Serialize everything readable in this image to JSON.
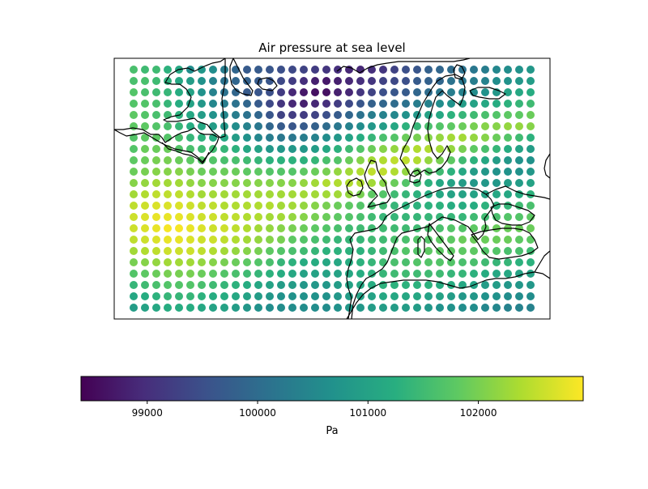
{
  "chart_data": {
    "type": "scatter",
    "title": "Air pressure at sea level",
    "colorbar": {
      "label": "Pa",
      "colormap": "viridis",
      "range": [
        98400,
        102950
      ],
      "ticks": [
        "99000",
        "100000",
        "101000",
        "102000"
      ]
    },
    "grid_rows": 22,
    "grid_cols": 36,
    "values": [
      [
        101600,
        101500,
        101500,
        101300,
        101100,
        100600,
        100800,
        100600,
        100300,
        99900,
        99700,
        99700,
        99600,
        99500,
        99400,
        99300,
        99200,
        99100,
        99000,
        98900,
        98900,
        99000,
        99100,
        99300,
        99500,
        99600,
        99800,
        99900,
        100000,
        100100,
        100200,
        100300,
        100500,
        100600,
        100700,
        100800
      ],
      [
        101600,
        101600,
        101500,
        101300,
        101100,
        100900,
        100700,
        100400,
        100100,
        99900,
        99800,
        99700,
        99600,
        99400,
        99200,
        99000,
        98800,
        98700,
        98800,
        98900,
        99000,
        99100,
        99300,
        99400,
        99500,
        99700,
        99800,
        99900,
        100100,
        100200,
        100300,
        100400,
        100600,
        100700,
        100800,
        100900
      ],
      [
        101700,
        101600,
        101500,
        101400,
        101200,
        101000,
        100700,
        100400,
        100100,
        99900,
        99700,
        99600,
        99500,
        99200,
        98900,
        98700,
        98600,
        98600,
        98800,
        98900,
        99100,
        99300,
        99500,
        99600,
        99700,
        99900,
        100000,
        100200,
        100300,
        100400,
        100600,
        100700,
        100800,
        101000,
        101100,
        101200
      ],
      [
        101700,
        101700,
        101600,
        101400,
        101200,
        101000,
        100800,
        100500,
        100300,
        100100,
        99900,
        99700,
        99400,
        99100,
        98900,
        98800,
        98900,
        99000,
        99200,
        99400,
        99600,
        99800,
        99900,
        100000,
        100100,
        100300,
        100400,
        100600,
        100700,
        100900,
        101000,
        101100,
        101200,
        101300,
        101400,
        101500
      ],
      [
        101800,
        101700,
        101600,
        101500,
        101300,
        101100,
        100900,
        100700,
        100500,
        100300,
        100100,
        99900,
        99600,
        99300,
        99200,
        99200,
        99300,
        99500,
        99700,
        99900,
        100100,
        100300,
        100400,
        100500,
        100700,
        100800,
        101000,
        101100,
        101300,
        101400,
        101500,
        101600,
        101700,
        101800,
        101800,
        101900
      ],
      [
        101800,
        101800,
        101700,
        101600,
        101400,
        101200,
        101100,
        100900,
        100800,
        100600,
        100400,
        100200,
        99900,
        99700,
        99600,
        99700,
        99800,
        100000,
        100200,
        100400,
        100600,
        100800,
        100900,
        101100,
        101300,
        101400,
        101600,
        101700,
        101800,
        101900,
        102000,
        102100,
        102100,
        102200,
        102200,
        102100
      ],
      [
        101700,
        101800,
        101800,
        101700,
        101600,
        101400,
        101300,
        101200,
        101100,
        100900,
        100700,
        100500,
        100300,
        100200,
        100200,
        100300,
        100400,
        100600,
        100800,
        101000,
        101200,
        101400,
        101600,
        101700,
        101900,
        102000,
        102100,
        102200,
        102300,
        102300,
        102200,
        102100,
        101900,
        101700,
        101500,
        101300
      ],
      [
        101700,
        101900,
        101900,
        101900,
        101700,
        101600,
        101500,
        101500,
        101400,
        101300,
        101100,
        101000,
        100800,
        100800,
        100800,
        100800,
        100900,
        101100,
        101300,
        101500,
        101700,
        101900,
        102100,
        102200,
        102300,
        102400,
        102400,
        102300,
        102200,
        102000,
        101800,
        101600,
        101400,
        101200,
        101000,
        100900
      ],
      [
        101800,
        101900,
        102000,
        102000,
        101900,
        101800,
        101700,
        101700,
        101600,
        101600,
        101500,
        101400,
        101300,
        101300,
        101300,
        101300,
        101400,
        101600,
        101700,
        101900,
        102100,
        102300,
        102400,
        102500,
        102500,
        102400,
        102200,
        102000,
        101800,
        101500,
        101300,
        101100,
        100900,
        100800,
        100700,
        100700
      ],
      [
        101900,
        102000,
        102100,
        102100,
        102100,
        102000,
        101900,
        101900,
        101900,
        101900,
        101800,
        101800,
        101700,
        101700,
        101700,
        101800,
        101900,
        102000,
        102200,
        102300,
        102400,
        102500,
        102500,
        102400,
        102200,
        101900,
        101700,
        101500,
        101300,
        101100,
        100900,
        100800,
        100700,
        100700,
        100700,
        100800
      ],
      [
        102100,
        102200,
        102300,
        102300,
        102300,
        102200,
        102100,
        102100,
        102100,
        102100,
        102100,
        102100,
        102100,
        102100,
        102100,
        102200,
        102300,
        102400,
        102400,
        102400,
        102400,
        102300,
        102100,
        101900,
        101700,
        101500,
        101300,
        101100,
        101000,
        100900,
        100800,
        100800,
        100800,
        100900,
        100900,
        101000
      ],
      [
        102300,
        102400,
        102500,
        102500,
        102500,
        102400,
        102300,
        102300,
        102300,
        102300,
        102300,
        102300,
        102300,
        102300,
        102300,
        102300,
        102300,
        102300,
        102300,
        102200,
        102000,
        101800,
        101700,
        101500,
        101400,
        101300,
        101200,
        101100,
        101000,
        101000,
        101000,
        101000,
        101100,
        101100,
        101200,
        101300
      ],
      [
        102500,
        102600,
        102700,
        102700,
        102700,
        102600,
        102500,
        102500,
        102400,
        102400,
        102400,
        102400,
        102400,
        102300,
        102300,
        102200,
        102100,
        102000,
        101900,
        101800,
        101700,
        101600,
        101500,
        101400,
        101300,
        101300,
        101300,
        101300,
        101200,
        101200,
        101200,
        101300,
        101300,
        101400,
        101500,
        101600
      ],
      [
        102600,
        102700,
        102800,
        102800,
        102800,
        102700,
        102600,
        102600,
        102500,
        102500,
        102400,
        102400,
        102300,
        102300,
        102200,
        102100,
        102000,
        101900,
        101800,
        101700,
        101600,
        101500,
        101400,
        101400,
        101400,
        101400,
        101400,
        101400,
        101400,
        101400,
        101500,
        101500,
        101600,
        101700,
        101700,
        101800
      ],
      [
        102600,
        102700,
        102800,
        102900,
        102900,
        102800,
        102700,
        102600,
        102600,
        102500,
        102400,
        102300,
        102200,
        102100,
        102000,
        101900,
        101800,
        101700,
        101600,
        101500,
        101500,
        101500,
        101500,
        101500,
        101500,
        101500,
        101600,
        101600,
        101700,
        101700,
        101800,
        101800,
        101900,
        101900,
        101900,
        101900
      ],
      [
        102500,
        102600,
        102700,
        102800,
        102800,
        102700,
        102600,
        102600,
        102500,
        102400,
        102300,
        102200,
        102100,
        102000,
        101800,
        101700,
        101600,
        101500,
        101400,
        101400,
        101400,
        101500,
        101500,
        101600,
        101600,
        101700,
        101700,
        101800,
        101800,
        101900,
        101900,
        101900,
        101900,
        101900,
        101800,
        101800
      ],
      [
        102300,
        102400,
        102500,
        102600,
        102600,
        102600,
        102500,
        102400,
        102300,
        102200,
        102100,
        102000,
        101800,
        101700,
        101600,
        101500,
        101400,
        101300,
        101300,
        101300,
        101300,
        101400,
        101500,
        101600,
        101700,
        101700,
        101800,
        101800,
        101800,
        101800,
        101800,
        101700,
        101700,
        101600,
        101600,
        101500
      ],
      [
        102000,
        102100,
        102200,
        102300,
        102300,
        102300,
        102200,
        102100,
        102000,
        101900,
        101800,
        101700,
        101600,
        101400,
        101300,
        101200,
        101200,
        101100,
        101100,
        101200,
        101300,
        101400,
        101500,
        101600,
        101600,
        101700,
        101700,
        101700,
        101700,
        101600,
        101600,
        101500,
        101400,
        101400,
        101300,
        101300
      ],
      [
        101700,
        101800,
        101900,
        102000,
        102000,
        102000,
        101900,
        101800,
        101700,
        101600,
        101500,
        101400,
        101300,
        101200,
        101100,
        101000,
        101000,
        101000,
        101000,
        101100,
        101200,
        101300,
        101400,
        101500,
        101500,
        101500,
        101500,
        101500,
        101400,
        101400,
        101300,
        101200,
        101100,
        101100,
        101000,
        101000
      ],
      [
        101400,
        101500,
        101600,
        101700,
        101700,
        101700,
        101600,
        101500,
        101400,
        101300,
        101200,
        101100,
        101000,
        100900,
        100900,
        100800,
        100800,
        100800,
        100900,
        101000,
        101100,
        101200,
        101300,
        101300,
        101300,
        101300,
        101300,
        101200,
        101200,
        101100,
        101000,
        100900,
        100900,
        100800,
        100800,
        100800
      ],
      [
        101100,
        101200,
        101300,
        101400,
        101400,
        101400,
        101300,
        101200,
        101200,
        101100,
        101000,
        100900,
        100800,
        100700,
        100700,
        100700,
        100700,
        100700,
        100800,
        100900,
        101000,
        101000,
        101100,
        101100,
        101100,
        101100,
        101000,
        101000,
        100900,
        100800,
        100800,
        100700,
        100700,
        100600,
        100600,
        100600
      ],
      [
        100900,
        101000,
        101100,
        101200,
        101200,
        101200,
        101100,
        101000,
        101000,
        100900,
        100800,
        100700,
        100600,
        100600,
        100600,
        100600,
        100600,
        100600,
        100700,
        100800,
        100800,
        100900,
        100900,
        100900,
        100900,
        100900,
        100800,
        100700,
        100700,
        100600,
        100600,
        100500,
        100500,
        100400,
        100400,
        100400
      ]
    ]
  }
}
